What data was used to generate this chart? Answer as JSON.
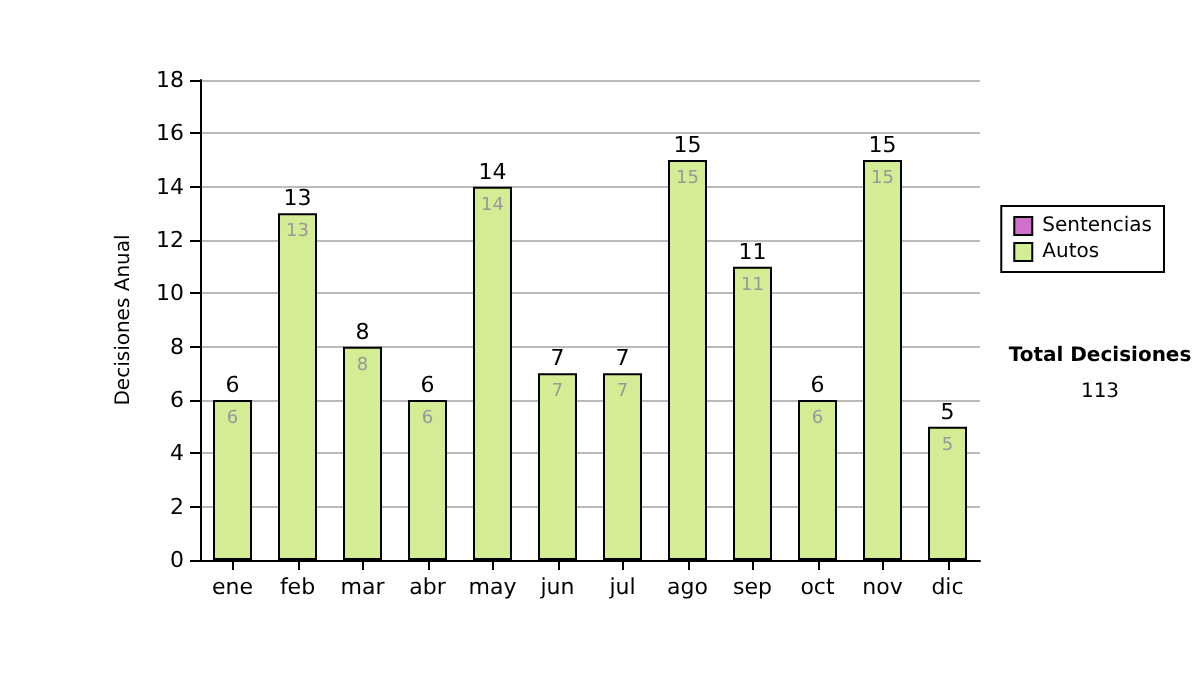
{
  "chart_data": {
    "type": "bar",
    "ylabel": "Decisiones Anual",
    "categories": [
      "ene",
      "feb",
      "mar",
      "abr",
      "may",
      "jun",
      "jul",
      "ago",
      "sep",
      "oct",
      "nov",
      "dic"
    ],
    "stacked": true,
    "series": [
      {
        "name": "Sentencias",
        "color": "#d070c8",
        "values": [
          0,
          0,
          0,
          0,
          0,
          0,
          0,
          0,
          0,
          0,
          0,
          0
        ]
      },
      {
        "name": "Autos",
        "color": "#d4ec94",
        "values": [
          6,
          13,
          8,
          6,
          14,
          7,
          7,
          15,
          11,
          6,
          15,
          5
        ],
        "value_labels": [
          "6",
          "13",
          "8",
          "6",
          "14",
          "7",
          "7",
          "15",
          "11",
          "6",
          "15",
          "5"
        ]
      }
    ],
    "totals": [
      "6",
      "13",
      "8",
      "6",
      "14",
      "7",
      "7",
      "15",
      "11",
      "6",
      "15",
      "5"
    ],
    "ylim": [
      0,
      18
    ],
    "yticks": [
      0,
      2,
      4,
      6,
      8,
      10,
      12,
      14,
      16,
      18
    ],
    "grid": "y",
    "legend": "right",
    "annotations": [
      "Total Decisiones",
      "113"
    ]
  }
}
